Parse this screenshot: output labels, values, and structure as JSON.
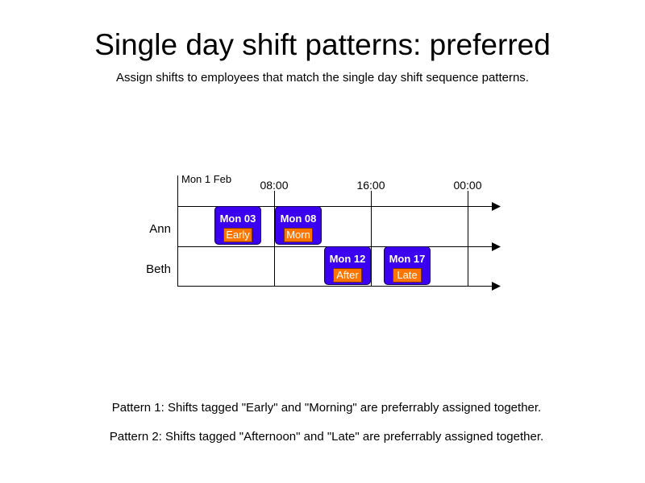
{
  "header": {
    "title": "Single day shift patterns: preferred",
    "subtitle": "Assign shifts to employees that match the single day shift sequence patterns."
  },
  "timeline": {
    "date": "Mon 1 Feb",
    "times": [
      "08:00",
      "16:00",
      "00:00"
    ]
  },
  "employees": [
    "Ann",
    "Beth"
  ],
  "shifts": [
    {
      "name": "Mon 03",
      "tag": "Early",
      "employee": "Ann"
    },
    {
      "name": "Mon 08",
      "tag": "Morn",
      "employee": "Ann"
    },
    {
      "name": "Mon 12",
      "tag": "After",
      "employee": "Beth"
    },
    {
      "name": "Mon 17",
      "tag": "Late",
      "employee": "Beth"
    }
  ],
  "notes": [
    "Pattern 1: Shifts tagged \"Early\" and \"Morning\" are preferrably assigned together.",
    "Pattern 2: Shifts tagged \"Afternoon\" and \"Late\" are preferrably assigned together."
  ],
  "colors": {
    "shift_fill": "#3c00f0",
    "tag_fill": "#ff7500"
  }
}
